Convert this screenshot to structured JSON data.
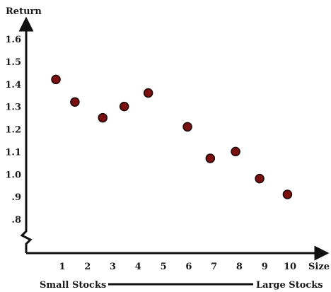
{
  "chart_data": {
    "type": "scatter",
    "title": "",
    "ylabel": "Return",
    "xlabel": "Size",
    "x": [
      0.75,
      1.5,
      2.6,
      3.45,
      4.4,
      5.95,
      6.85,
      7.85,
      8.8,
      9.9
    ],
    "y": [
      1.42,
      1.32,
      1.25,
      1.3,
      1.36,
      1.21,
      1.07,
      1.1,
      0.98,
      0.91
    ],
    "xticks": [
      "1",
      "2",
      "3",
      "4",
      "5",
      "6",
      "7",
      "8",
      "9",
      "10"
    ],
    "xtick_values": [
      1,
      2,
      3,
      4,
      5,
      6,
      7,
      8,
      9,
      10
    ],
    "yticks": [
      ".8",
      ".9",
      "1.0",
      "1.1",
      "1.2",
      "1.3",
      "1.4",
      "1.5",
      "1.6"
    ],
    "ytick_values": [
      0.8,
      0.9,
      1.0,
      1.1,
      1.2,
      1.3,
      1.4,
      1.5,
      1.6
    ],
    "xlim": [
      0,
      10.5
    ],
    "ylim": [
      0.8,
      1.6
    ],
    "y_axis_break": true,
    "grid": false,
    "marker_color": "#7a1010",
    "axis_color": "#111111"
  },
  "captions": {
    "left": "Small Stocks",
    "right": "Large Stocks"
  }
}
